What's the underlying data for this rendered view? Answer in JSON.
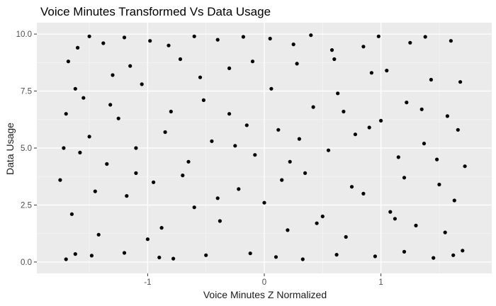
{
  "chart_data": {
    "type": "scatter",
    "title": "Voice Minutes Transformed Vs Data Usage",
    "xlabel": "Voice Minutes Z Normalized",
    "ylabel": "Data Usage",
    "xlim": [
      -1.95,
      1.95
    ],
    "ylim": [
      -0.5,
      10.5
    ],
    "x_ticks": [
      -1,
      0,
      1
    ],
    "x_tick_labels": [
      "-1",
      "0",
      "1"
    ],
    "y_ticks": [
      0,
      2.5,
      5,
      7.5,
      10
    ],
    "y_tick_labels": [
      "0.0",
      "2.5",
      "5.0",
      "7.5",
      "10.0"
    ],
    "grid": true,
    "panel_background": "#ebebeb",
    "grid_major_color": "#ffffff",
    "grid_minor_color": "#f5f5f5",
    "point_color": "#000000",
    "x_range": [
      -1.73,
      1.73
    ],
    "y_range": [
      0,
      10
    ],
    "points": [
      [
        -1.7,
        0.12
      ],
      [
        -1.62,
        0.35
      ],
      [
        -1.48,
        0.28
      ],
      [
        -1.2,
        0.4
      ],
      [
        -0.9,
        0.2
      ],
      [
        -0.78,
        0.15
      ],
      [
        -0.5,
        0.3
      ],
      [
        -0.12,
        0.38
      ],
      [
        0.1,
        0.22
      ],
      [
        0.33,
        0.12
      ],
      [
        0.62,
        0.32
      ],
      [
        0.95,
        0.25
      ],
      [
        1.2,
        0.45
      ],
      [
        1.45,
        0.18
      ],
      [
        1.62,
        0.3
      ],
      [
        1.7,
        0.5
      ],
      [
        -1.6,
        9.4
      ],
      [
        -1.5,
        9.9
      ],
      [
        -1.38,
        9.6
      ],
      [
        -1.2,
        9.85
      ],
      [
        -0.98,
        9.7
      ],
      [
        -0.82,
        9.5
      ],
      [
        -0.6,
        9.9
      ],
      [
        -0.4,
        9.75
      ],
      [
        -0.18,
        9.88
      ],
      [
        0.05,
        9.8
      ],
      [
        0.25,
        9.55
      ],
      [
        0.4,
        9.95
      ],
      [
        0.58,
        9.3
      ],
      [
        0.85,
        9.45
      ],
      [
        0.98,
        9.9
      ],
      [
        1.25,
        9.62
      ],
      [
        1.38,
        9.88
      ],
      [
        1.6,
        9.7
      ],
      [
        -1.75,
        3.6
      ],
      [
        -1.7,
        6.5
      ],
      [
        -1.68,
        8.8
      ],
      [
        -1.65,
        2.1
      ],
      [
        -1.55,
        7.2
      ],
      [
        -1.5,
        5.5
      ],
      [
        -1.42,
        1.2
      ],
      [
        -1.35,
        4.3
      ],
      [
        -1.3,
        8.2
      ],
      [
        -1.25,
        6.3
      ],
      [
        -1.18,
        2.9
      ],
      [
        -1.1,
        5.0
      ],
      [
        -1.05,
        7.8
      ],
      [
        -0.95,
        3.5
      ],
      [
        -0.88,
        1.5
      ],
      [
        -0.8,
        6.6
      ],
      [
        -0.72,
        8.9
      ],
      [
        -0.65,
        4.4
      ],
      [
        -0.6,
        2.4
      ],
      [
        -0.52,
        7.1
      ],
      [
        -0.45,
        5.3
      ],
      [
        -0.38,
        1.8
      ],
      [
        -0.3,
        8.5
      ],
      [
        -0.22,
        3.2
      ],
      [
        -0.15,
        6.0
      ],
      [
        -0.08,
        4.7
      ],
      [
        0.0,
        2.6
      ],
      [
        0.06,
        7.6
      ],
      [
        0.12,
        5.8
      ],
      [
        0.2,
        1.4
      ],
      [
        0.28,
        8.7
      ],
      [
        0.35,
        3.9
      ],
      [
        0.42,
        6.8
      ],
      [
        0.5,
        2.0
      ],
      [
        0.55,
        4.9
      ],
      [
        0.63,
        7.4
      ],
      [
        0.7,
        1.1
      ],
      [
        0.78,
        5.6
      ],
      [
        0.85,
        3.0
      ],
      [
        0.92,
        8.3
      ],
      [
        1.0,
        6.2
      ],
      [
        1.08,
        2.2
      ],
      [
        1.15,
        4.6
      ],
      [
        1.22,
        7.0
      ],
      [
        1.3,
        1.6
      ],
      [
        1.37,
        5.2
      ],
      [
        1.43,
        8.0
      ],
      [
        1.5,
        3.4
      ],
      [
        1.57,
        6.4
      ],
      [
        1.63,
        2.7
      ],
      [
        1.68,
        7.9
      ],
      [
        1.72,
        4.2
      ],
      [
        -1.58,
        4.8
      ],
      [
        -1.45,
        3.1
      ],
      [
        -1.32,
        6.9
      ],
      [
        -1.15,
        8.6
      ],
      [
        -1.0,
        1.0
      ],
      [
        -0.85,
        5.7
      ],
      [
        -0.7,
        3.8
      ],
      [
        -0.55,
        8.1
      ],
      [
        -0.4,
        2.8
      ],
      [
        -0.25,
        5.1
      ],
      [
        -0.1,
        8.8
      ],
      [
        0.15,
        3.6
      ],
      [
        0.3,
        5.4
      ],
      [
        0.45,
        1.7
      ],
      [
        0.6,
        8.9
      ],
      [
        0.75,
        3.3
      ],
      [
        0.9,
        5.9
      ],
      [
        1.05,
        8.4
      ],
      [
        1.2,
        3.7
      ],
      [
        1.35,
        6.7
      ],
      [
        1.55,
        1.3
      ],
      [
        1.66,
        5.8
      ],
      [
        -1.72,
        5.0
      ],
      [
        -1.62,
        7.6
      ],
      [
        -1.1,
        3.9
      ],
      [
        -0.3,
        6.5
      ],
      [
        0.22,
        4.4
      ],
      [
        0.68,
        6.6
      ],
      [
        1.12,
        1.9
      ],
      [
        1.48,
        4.5
      ]
    ]
  }
}
